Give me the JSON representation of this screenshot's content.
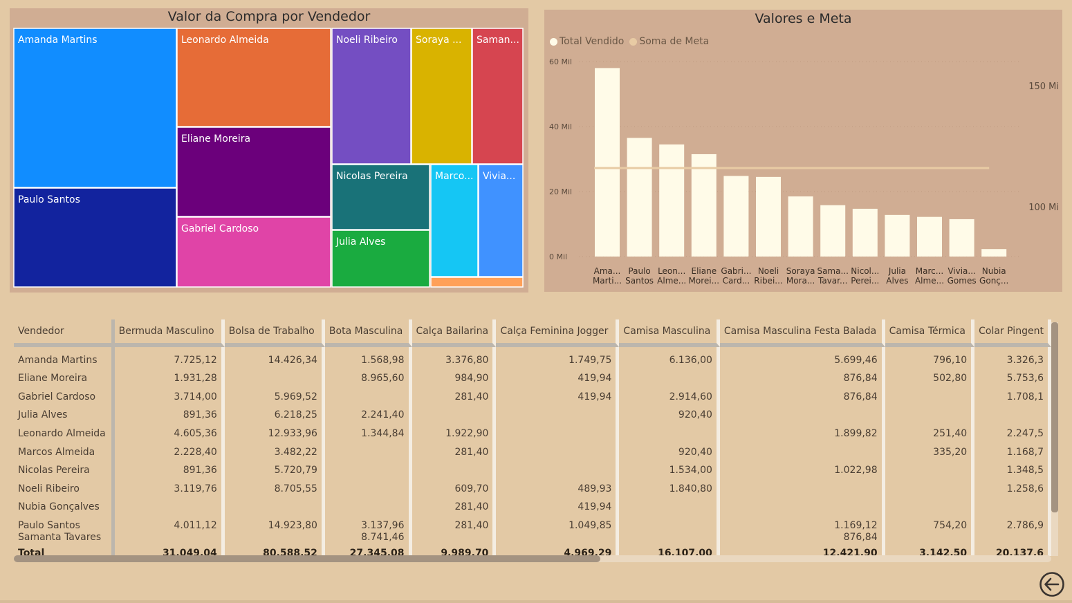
{
  "treemap": {
    "title": "Valor da Compra por Vendedor",
    "tiles": [
      {
        "label": "Amanda Martins",
        "color": "#118dff"
      },
      {
        "label": "Paulo Santos",
        "color": "#12239e"
      },
      {
        "label": "Leonardo Almeida",
        "color": "#e66c37"
      },
      {
        "label": "Eliane Moreira",
        "color": "#6b007b"
      },
      {
        "label": "Gabriel Cardoso",
        "color": "#e044a7"
      },
      {
        "label": "Noeli Ribeiro",
        "color": "#744ec2"
      },
      {
        "label": "Soraya ...",
        "color": "#d9b300"
      },
      {
        "label": "Saman...",
        "color": "#d64550"
      },
      {
        "label": "Nicolas Pereira",
        "color": "#197278"
      },
      {
        "label": "Julia Alves",
        "color": "#1aab40"
      },
      {
        "label": "Marco...",
        "color": "#15c6f4"
      },
      {
        "label": "Vivia...",
        "color": "#4092ff"
      },
      {
        "label": "",
        "color": "#ffa058"
      }
    ]
  },
  "chart_data": {
    "type": "bar",
    "title": "Valores e Meta",
    "legend": [
      "Total Vendido",
      "Soma de Meta"
    ],
    "legend_colors": [
      "#fffbe8",
      "#e8cba4"
    ],
    "categories": [
      [
        "Ama...",
        "Marti..."
      ],
      [
        "Paulo",
        "Santos"
      ],
      [
        "Leon...",
        "Alme..."
      ],
      [
        "Eliane",
        "Morei..."
      ],
      [
        "Gabri...",
        "Card..."
      ],
      [
        "Noeli",
        "Ribei..."
      ],
      [
        "Soraya",
        "Mora..."
      ],
      [
        "Sama...",
        "Tavar..."
      ],
      [
        "Nicol...",
        "Perei..."
      ],
      [
        "Julia",
        "Alves"
      ],
      [
        "Marc...",
        "Alme..."
      ],
      [
        "Vivia...",
        "Gomes"
      ],
      [
        "Nubia",
        "Gonç..."
      ]
    ],
    "series": [
      {
        "name": "Total Vendido",
        "values": [
          58,
          36.5,
          34.5,
          31.5,
          24.8,
          24.5,
          18.5,
          15.8,
          14.7,
          12.8,
          12.2,
          11.5,
          2.3
        ]
      },
      {
        "name": "Soma de Meta",
        "values": [
          116,
          116,
          116,
          116,
          116,
          116,
          116,
          116,
          116,
          116,
          116,
          116,
          116
        ]
      }
    ],
    "y_left": {
      "ticks": [
        "0 Mil",
        "20 Mil",
        "40 Mil",
        "60 Mil"
      ],
      "range": [
        0,
        60
      ]
    },
    "y_right": {
      "ticks": [
        "100 Mi",
        "150 Mi"
      ],
      "range": [
        100,
        150
      ]
    },
    "bar_color": "#fffbe8",
    "line_color": "#e8cba4"
  },
  "table": {
    "headers": [
      "Vendedor",
      "Bermuda Masculino",
      "Bolsa de Trabalho",
      "Bota Masculina",
      "Calça Bailarina",
      "Calça Feminina Jogger",
      "Camisa Masculina",
      "Camisa Masculina Festa Balada",
      "Camisa Térmica",
      "Colar Pingent"
    ],
    "rows": [
      [
        "Amanda Martins",
        "7.725,12",
        "14.426,34",
        "1.568,98",
        "3.376,80",
        "1.749,75",
        "6.136,00",
        "5.699,46",
        "796,10",
        "3.326,3"
      ],
      [
        "Eliane Moreira",
        "1.931,28",
        "",
        "8.965,60",
        "984,90",
        "419,94",
        "",
        "876,84",
        "502,80",
        "5.753,6"
      ],
      [
        "Gabriel Cardoso",
        "3.714,00",
        "5.969,52",
        "",
        "281,40",
        "419,94",
        "2.914,60",
        "876,84",
        "",
        "1.708,1"
      ],
      [
        "Julia Alves",
        "891,36",
        "6.218,25",
        "2.241,40",
        "",
        "",
        "920,40",
        "",
        "",
        ""
      ],
      [
        "Leonardo Almeida",
        "4.605,36",
        "12.933,96",
        "1.344,84",
        "1.922,90",
        "",
        "",
        "1.899,82",
        "251,40",
        "2.247,5"
      ],
      [
        "Marcos Almeida",
        "2.228,40",
        "3.482,22",
        "",
        "281,40",
        "",
        "920,40",
        "",
        "335,20",
        "1.168,7"
      ],
      [
        "Nicolas Pereira",
        "891,36",
        "5.720,79",
        "",
        "",
        "",
        "1.534,00",
        "1.022,98",
        "",
        "1.348,5"
      ],
      [
        "Noeli Ribeiro",
        "3.119,76",
        "8.705,55",
        "",
        "609,70",
        "489,93",
        "1.840,80",
        "",
        "",
        "1.258,6"
      ],
      [
        "Nubia Gonçalves",
        "",
        "",
        "",
        "281,40",
        "419,94",
        "",
        "",
        "",
        ""
      ],
      [
        "Paulo Santos",
        "4.011,12",
        "14.923,80",
        "3.137,96",
        "281,40",
        "1.049,85",
        "",
        "1.169,12",
        "754,20",
        "2.786,9"
      ],
      [
        "Samanta Tavares",
        "",
        "",
        "8.741,46",
        "",
        "",
        "",
        "876,84",
        "",
        ""
      ]
    ],
    "total": [
      "Total",
      "31.049,04",
      "80.588,52",
      "27.345,08",
      "9.989,70",
      "4.969,29",
      "16.107,00",
      "12.421,90",
      "3.142,50",
      "20.137,6"
    ]
  },
  "nav": {
    "back_icon": "arrow-left-circle-icon"
  }
}
